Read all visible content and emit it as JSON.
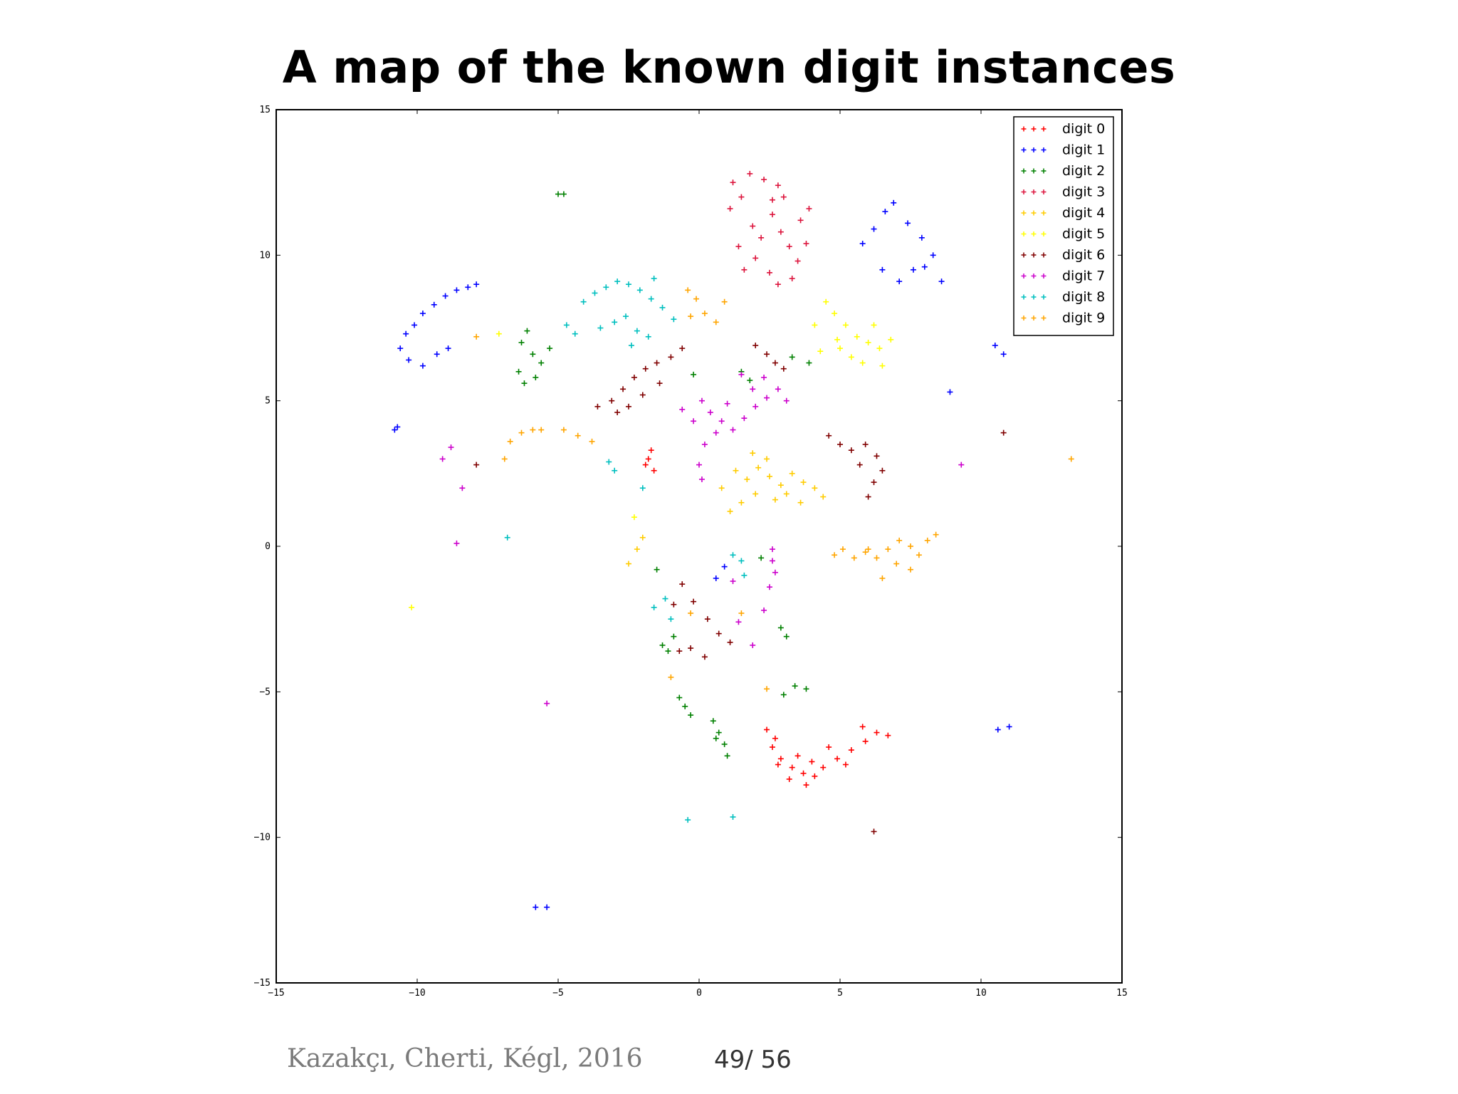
{
  "slide": {
    "title": "A map of the known digit instances",
    "citation": "Kazakçı, Cherti, Kégl, 2016",
    "page": "49/ 56"
  },
  "chart_data": {
    "type": "scatter",
    "marker": "plus",
    "xlim": [
      -15,
      15
    ],
    "ylim": [
      -15,
      15
    ],
    "x_ticks": [
      -15,
      -10,
      -5,
      0,
      5,
      10,
      15
    ],
    "y_ticks": [
      -15,
      -10,
      -5,
      0,
      5,
      10,
      15
    ],
    "grid": false,
    "legend_position": "top-right",
    "series": [
      {
        "name": "digit 0",
        "color": "#ff0000",
        "points": [
          [
            -1.7,
            3.3
          ],
          [
            -1.8,
            3.0
          ],
          [
            -1.6,
            2.6
          ],
          [
            -1.9,
            2.8
          ],
          [
            2.4,
            -6.3
          ],
          [
            2.6,
            -6.9
          ],
          [
            2.9,
            -7.3
          ],
          [
            3.3,
            -7.6
          ],
          [
            3.7,
            -7.8
          ],
          [
            4.1,
            -7.9
          ],
          [
            3.8,
            -8.2
          ],
          [
            3.2,
            -8.0
          ],
          [
            2.8,
            -7.5
          ],
          [
            4.4,
            -7.6
          ],
          [
            4.9,
            -7.3
          ],
          [
            5.4,
            -7.0
          ],
          [
            5.9,
            -6.7
          ],
          [
            6.3,
            -6.4
          ],
          [
            5.8,
            -6.2
          ],
          [
            6.7,
            -6.5
          ],
          [
            4.6,
            -6.9
          ],
          [
            5.2,
            -7.5
          ],
          [
            3.5,
            -7.2
          ],
          [
            2.7,
            -6.6
          ],
          [
            4.0,
            -7.4
          ]
        ]
      },
      {
        "name": "digit 1",
        "color": "#0000ff",
        "points": [
          [
            -10.4,
            7.3
          ],
          [
            -10.1,
            7.6
          ],
          [
            -9.8,
            8.0
          ],
          [
            -9.4,
            8.3
          ],
          [
            -9.0,
            8.6
          ],
          [
            -8.6,
            8.8
          ],
          [
            -8.2,
            8.9
          ],
          [
            -7.9,
            9.0
          ],
          [
            -10.6,
            6.8
          ],
          [
            -10.3,
            6.4
          ],
          [
            -9.8,
            6.2
          ],
          [
            -9.3,
            6.6
          ],
          [
            -8.9,
            6.8
          ],
          [
            -10.8,
            4.0
          ],
          [
            -10.7,
            4.1
          ],
          [
            5.8,
            10.4
          ],
          [
            6.2,
            10.9
          ],
          [
            6.6,
            11.5
          ],
          [
            6.9,
            11.8
          ],
          [
            7.4,
            11.1
          ],
          [
            7.9,
            10.6
          ],
          [
            8.3,
            10.0
          ],
          [
            7.6,
            9.5
          ],
          [
            7.1,
            9.1
          ],
          [
            6.5,
            9.5
          ],
          [
            8.6,
            9.1
          ],
          [
            8.0,
            9.6
          ],
          [
            10.5,
            6.9
          ],
          [
            10.8,
            6.6
          ],
          [
            8.9,
            5.3
          ],
          [
            11.0,
            -6.2
          ],
          [
            10.6,
            -6.3
          ],
          [
            -5.8,
            -12.4
          ],
          [
            -5.4,
            -12.4
          ],
          [
            0.6,
            -1.1
          ],
          [
            0.9,
            -0.7
          ]
        ]
      },
      {
        "name": "digit 2",
        "color": "#008000",
        "points": [
          [
            -6.1,
            7.4
          ],
          [
            -6.3,
            7.0
          ],
          [
            -5.9,
            6.6
          ],
          [
            -5.6,
            6.3
          ],
          [
            -6.4,
            6.0
          ],
          [
            -5.8,
            5.8
          ],
          [
            -6.2,
            5.6
          ],
          [
            -5.3,
            6.8
          ],
          [
            -5.0,
            12.1
          ],
          [
            -4.8,
            12.1
          ],
          [
            -1.3,
            -3.4
          ],
          [
            -1.1,
            -3.6
          ],
          [
            -0.9,
            -3.1
          ],
          [
            -0.7,
            -5.2
          ],
          [
            -0.5,
            -5.5
          ],
          [
            -0.3,
            -5.8
          ],
          [
            0.5,
            -6.0
          ],
          [
            0.7,
            -6.4
          ],
          [
            0.9,
            -6.8
          ],
          [
            1.0,
            -7.2
          ],
          [
            0.6,
            -6.6
          ],
          [
            2.9,
            -2.8
          ],
          [
            3.1,
            -3.1
          ],
          [
            3.4,
            -4.8
          ],
          [
            3.8,
            -4.9
          ],
          [
            3.0,
            -5.1
          ],
          [
            1.5,
            6.0
          ],
          [
            1.8,
            5.7
          ],
          [
            3.3,
            6.5
          ],
          [
            3.9,
            6.3
          ],
          [
            -0.2,
            5.9
          ],
          [
            2.2,
            -0.4
          ],
          [
            -1.5,
            -0.8
          ]
        ]
      },
      {
        "name": "digit 3",
        "color": "#dc143c",
        "points": [
          [
            1.2,
            12.5
          ],
          [
            1.5,
            12.0
          ],
          [
            1.1,
            11.6
          ],
          [
            1.8,
            12.8
          ],
          [
            2.3,
            12.6
          ],
          [
            2.8,
            12.4
          ],
          [
            3.0,
            12.0
          ],
          [
            2.6,
            11.4
          ],
          [
            2.9,
            10.8
          ],
          [
            3.2,
            10.3
          ],
          [
            3.5,
            9.8
          ],
          [
            2.5,
            9.4
          ],
          [
            2.0,
            9.9
          ],
          [
            1.6,
            9.5
          ],
          [
            2.2,
            10.6
          ],
          [
            3.6,
            11.2
          ],
          [
            3.8,
            10.4
          ],
          [
            3.3,
            9.2
          ],
          [
            2.8,
            9.0
          ],
          [
            1.9,
            11.0
          ],
          [
            1.4,
            10.3
          ],
          [
            2.6,
            11.9
          ],
          [
            3.9,
            11.6
          ]
        ]
      },
      {
        "name": "digit 4",
        "color": "#ffcc00",
        "points": [
          [
            1.3,
            2.6
          ],
          [
            1.7,
            2.3
          ],
          [
            2.1,
            2.7
          ],
          [
            2.5,
            2.4
          ],
          [
            2.9,
            2.1
          ],
          [
            3.3,
            2.5
          ],
          [
            3.7,
            2.2
          ],
          [
            4.1,
            2.0
          ],
          [
            4.4,
            1.7
          ],
          [
            2.0,
            1.8
          ],
          [
            1.5,
            1.5
          ],
          [
            2.7,
            1.6
          ],
          [
            3.1,
            1.8
          ],
          [
            3.6,
            1.5
          ],
          [
            2.4,
            3.0
          ],
          [
            1.9,
            3.2
          ],
          [
            1.1,
            1.2
          ],
          [
            0.8,
            2.0
          ],
          [
            -2.2,
            -0.1
          ],
          [
            -2.0,
            0.3
          ],
          [
            -2.5,
            -0.6
          ]
        ]
      },
      {
        "name": "digit 5",
        "color": "#ffff00",
        "points": [
          [
            4.5,
            8.4
          ],
          [
            4.8,
            8.0
          ],
          [
            5.2,
            7.6
          ],
          [
            5.6,
            7.2
          ],
          [
            6.0,
            7.0
          ],
          [
            6.4,
            6.8
          ],
          [
            6.8,
            7.1
          ],
          [
            5.4,
            6.5
          ],
          [
            5.8,
            6.3
          ],
          [
            4.9,
            7.1
          ],
          [
            5.0,
            6.8
          ],
          [
            6.2,
            7.6
          ],
          [
            4.1,
            7.6
          ],
          [
            4.3,
            6.7
          ],
          [
            6.5,
            6.2
          ],
          [
            -7.1,
            7.3
          ],
          [
            -10.2,
            -2.1
          ],
          [
            -2.3,
            1.0
          ]
        ]
      },
      {
        "name": "digit 6",
        "color": "#800000",
        "points": [
          [
            -3.6,
            4.8
          ],
          [
            -3.1,
            5.0
          ],
          [
            -2.7,
            5.4
          ],
          [
            -2.3,
            5.8
          ],
          [
            -1.9,
            6.1
          ],
          [
            -1.5,
            6.3
          ],
          [
            -2.5,
            4.8
          ],
          [
            -2.0,
            5.2
          ],
          [
            -1.0,
            6.5
          ],
          [
            -0.6,
            6.8
          ],
          [
            -1.4,
            5.6
          ],
          [
            -2.9,
            4.6
          ],
          [
            4.6,
            3.8
          ],
          [
            5.0,
            3.5
          ],
          [
            5.4,
            3.3
          ],
          [
            5.9,
            3.5
          ],
          [
            6.3,
            3.1
          ],
          [
            6.5,
            2.6
          ],
          [
            6.2,
            2.2
          ],
          [
            6.0,
            1.7
          ],
          [
            5.7,
            2.8
          ],
          [
            2.0,
            6.9
          ],
          [
            2.4,
            6.6
          ],
          [
            2.7,
            6.3
          ],
          [
            3.0,
            6.1
          ],
          [
            -0.6,
            -1.3
          ],
          [
            -0.2,
            -1.9
          ],
          [
            0.3,
            -2.5
          ],
          [
            0.7,
            -3.0
          ],
          [
            1.1,
            -3.3
          ],
          [
            -0.3,
            -3.5
          ],
          [
            -0.7,
            -3.6
          ],
          [
            0.2,
            -3.8
          ],
          [
            -0.9,
            -2.0
          ],
          [
            6.2,
            -9.8
          ],
          [
            10.8,
            3.9
          ],
          [
            -7.9,
            2.8
          ]
        ]
      },
      {
        "name": "digit 7",
        "color": "#cc00cc",
        "points": [
          [
            0.1,
            5.0
          ],
          [
            0.4,
            4.6
          ],
          [
            0.8,
            4.3
          ],
          [
            1.2,
            4.0
          ],
          [
            1.6,
            4.4
          ],
          [
            2.0,
            4.8
          ],
          [
            2.4,
            5.1
          ],
          [
            2.8,
            5.4
          ],
          [
            3.1,
            5.0
          ],
          [
            1.5,
            5.9
          ],
          [
            1.9,
            5.4
          ],
          [
            2.3,
            5.8
          ],
          [
            1.0,
            4.9
          ],
          [
            0.6,
            3.9
          ],
          [
            0.2,
            3.5
          ],
          [
            -0.2,
            4.3
          ],
          [
            -0.6,
            4.7
          ],
          [
            0.0,
            2.8
          ],
          [
            0.1,
            2.3
          ],
          [
            2.6,
            -0.1
          ],
          [
            2.6,
            -0.5
          ],
          [
            2.7,
            -0.9
          ],
          [
            2.5,
            -1.4
          ],
          [
            1.2,
            -1.2
          ],
          [
            1.4,
            -2.6
          ],
          [
            1.9,
            -3.4
          ],
          [
            2.3,
            -2.2
          ],
          [
            -8.8,
            3.4
          ],
          [
            -9.1,
            3.0
          ],
          [
            -8.4,
            2.0
          ],
          [
            -5.4,
            -5.4
          ],
          [
            -8.6,
            0.1
          ],
          [
            9.3,
            2.8
          ]
        ]
      },
      {
        "name": "digit 8",
        "color": "#00bfbf",
        "points": [
          [
            -4.1,
            8.4
          ],
          [
            -3.7,
            8.7
          ],
          [
            -3.3,
            8.9
          ],
          [
            -2.9,
            9.1
          ],
          [
            -2.5,
            9.0
          ],
          [
            -2.1,
            8.8
          ],
          [
            -1.7,
            8.5
          ],
          [
            -1.3,
            8.2
          ],
          [
            -0.9,
            7.8
          ],
          [
            -2.6,
            7.9
          ],
          [
            -2.2,
            7.4
          ],
          [
            -3.0,
            7.7
          ],
          [
            -3.5,
            7.5
          ],
          [
            -4.4,
            7.3
          ],
          [
            -4.7,
            7.6
          ],
          [
            -1.8,
            7.2
          ],
          [
            -2.4,
            6.9
          ],
          [
            -1.6,
            9.2
          ],
          [
            -3.2,
            2.9
          ],
          [
            -3.0,
            2.6
          ],
          [
            -1.6,
            -2.1
          ],
          [
            -1.2,
            -1.8
          ],
          [
            -1.0,
            -2.5
          ],
          [
            1.2,
            -0.3
          ],
          [
            1.6,
            -1.0
          ],
          [
            1.5,
            -0.5
          ],
          [
            -0.4,
            -9.4
          ],
          [
            1.2,
            -9.3
          ],
          [
            -2.0,
            2.0
          ],
          [
            -6.8,
            0.3
          ]
        ]
      },
      {
        "name": "digit 9",
        "color": "#ffa500",
        "points": [
          [
            -6.9,
            3.0
          ],
          [
            -6.7,
            3.6
          ],
          [
            -6.3,
            3.9
          ],
          [
            -5.9,
            4.0
          ],
          [
            -5.6,
            4.0
          ],
          [
            -4.8,
            4.0
          ],
          [
            -4.3,
            3.8
          ],
          [
            -3.8,
            3.6
          ],
          [
            -0.4,
            8.8
          ],
          [
            -0.1,
            8.5
          ],
          [
            0.2,
            8.0
          ],
          [
            0.6,
            7.7
          ],
          [
            0.9,
            8.4
          ],
          [
            -0.3,
            7.9
          ],
          [
            5.1,
            -0.1
          ],
          [
            5.5,
            -0.4
          ],
          [
            5.9,
            -0.2
          ],
          [
            6.3,
            -0.4
          ],
          [
            6.7,
            -0.1
          ],
          [
            7.1,
            0.2
          ],
          [
            7.5,
            0.0
          ],
          [
            7.8,
            -0.3
          ],
          [
            8.1,
            0.2
          ],
          [
            8.4,
            0.4
          ],
          [
            7.0,
            -0.6
          ],
          [
            6.0,
            -0.1
          ],
          [
            6.5,
            -1.1
          ],
          [
            7.5,
            -0.8
          ],
          [
            4.8,
            -0.3
          ],
          [
            -0.3,
            -2.3
          ],
          [
            1.5,
            -2.3
          ],
          [
            -1.0,
            -4.5
          ],
          [
            2.4,
            -4.9
          ],
          [
            13.2,
            3.0
          ],
          [
            -7.9,
            7.2
          ]
        ]
      }
    ]
  }
}
